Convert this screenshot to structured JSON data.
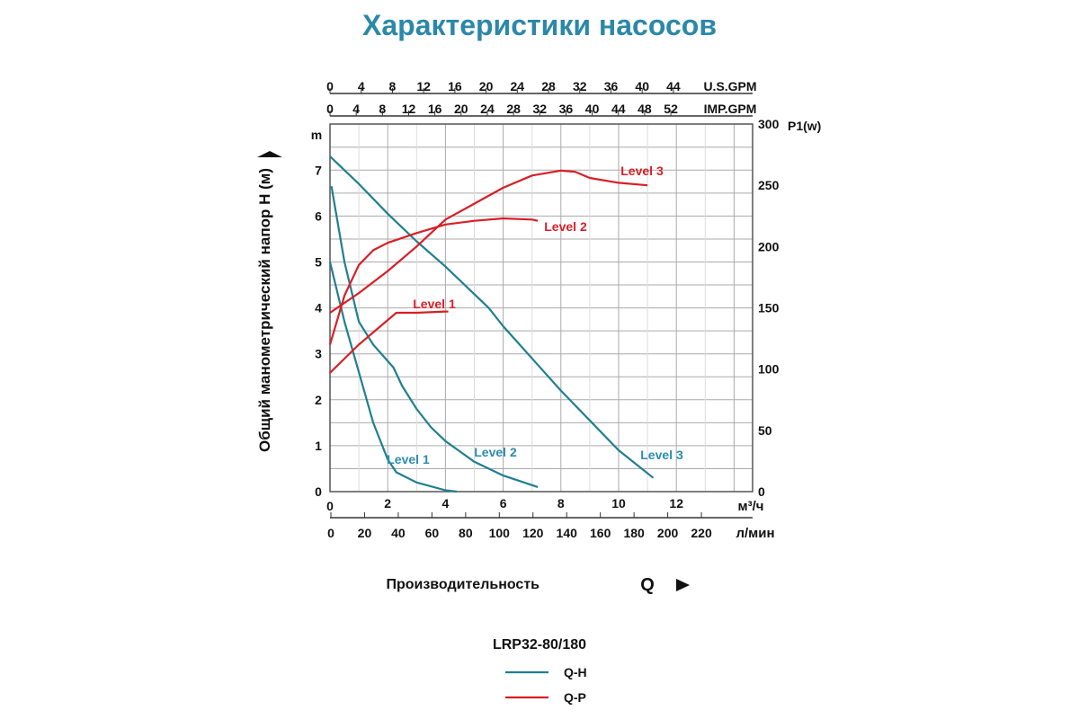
{
  "title": "Характеристики насосов",
  "chart_data": {
    "type": "line",
    "model": "LRP32-80/180",
    "xlabel": "Производительность",
    "xlabel_symbol": "Q",
    "ylabel": "Общий манометрический напор H (м)",
    "ylabel_unit_top": "m",
    "y2label": "P1(w)",
    "x_unit": "м³/ч",
    "x_alt_unit": "л/мин",
    "top_axis_1_unit": "U.S.GPM",
    "top_axis_2_unit": "IMP.GPM",
    "xlim": [
      0,
      14.6
    ],
    "ylim": [
      0,
      8
    ],
    "y2lim": [
      0,
      300
    ],
    "grid": true,
    "x_ticks": [
      0,
      2,
      4,
      6,
      8,
      10,
      12
    ],
    "x_alt_ticks": [
      0,
      20,
      40,
      60,
      80,
      100,
      120,
      140,
      160,
      180,
      200,
      220
    ],
    "usgpm_ticks": [
      0,
      4,
      8,
      12,
      16,
      20,
      24,
      28,
      32,
      36,
      40,
      44
    ],
    "impgpm_ticks": [
      0,
      4,
      8,
      12,
      16,
      20,
      24,
      28,
      32,
      36,
      40,
      44,
      48,
      52
    ],
    "y_ticks": [
      0,
      1,
      2,
      3,
      4,
      5,
      6,
      7
    ],
    "y2_ticks": [
      0,
      50,
      100,
      150,
      200,
      250,
      300
    ],
    "colors": {
      "qh": "#1f7f8f",
      "qp": "#d71f26",
      "title": "#2b88a8",
      "qh_label": "#2a8cb0"
    },
    "legend": [
      {
        "name": "Q-H",
        "color": "#1f7f8f"
      },
      {
        "name": "Q-P",
        "color": "#d71f26"
      }
    ],
    "qh_series": [
      {
        "name": "Level 1",
        "points": [
          [
            0,
            5.0
          ],
          [
            0.5,
            3.7
          ],
          [
            1,
            2.6
          ],
          [
            1.5,
            1.5
          ],
          [
            2,
            0.7
          ],
          [
            2.3,
            0.42
          ],
          [
            3,
            0.2
          ],
          [
            4,
            0.03
          ],
          [
            4.4,
            0
          ]
        ]
      },
      {
        "name": "Level 2",
        "points": [
          [
            0.05,
            6.65
          ],
          [
            0.5,
            5.0
          ],
          [
            1,
            3.7
          ],
          [
            1.5,
            3.2
          ],
          [
            2.2,
            2.7
          ],
          [
            2.5,
            2.3
          ],
          [
            3,
            1.8
          ],
          [
            3.5,
            1.4
          ],
          [
            4,
            1.1
          ],
          [
            5,
            0.65
          ],
          [
            6,
            0.35
          ],
          [
            7.2,
            0.1
          ]
        ]
      },
      {
        "name": "Level 3",
        "points": [
          [
            0,
            7.3
          ],
          [
            1,
            6.7
          ],
          [
            2,
            6.05
          ],
          [
            3,
            5.45
          ],
          [
            4,
            4.9
          ],
          [
            5,
            4.3
          ],
          [
            5.5,
            4.0
          ],
          [
            6,
            3.6
          ],
          [
            7,
            2.9
          ],
          [
            8,
            2.2
          ],
          [
            9,
            1.55
          ],
          [
            10,
            0.9
          ],
          [
            11.2,
            0.3
          ]
        ]
      }
    ],
    "qp_series": [
      {
        "name": "Level 1",
        "points": [
          [
            0,
            97
          ],
          [
            1,
            120
          ],
          [
            2,
            140
          ],
          [
            2.3,
            146
          ],
          [
            3,
            146
          ],
          [
            4,
            147
          ],
          [
            4.1,
            147
          ]
        ]
      },
      {
        "name": "Level 2",
        "points": [
          [
            0,
            120
          ],
          [
            0.5,
            160
          ],
          [
            1,
            185
          ],
          [
            1.5,
            197
          ],
          [
            2,
            203
          ],
          [
            3,
            211
          ],
          [
            4,
            218
          ],
          [
            5,
            221
          ],
          [
            6,
            223
          ],
          [
            7,
            222
          ],
          [
            7.2,
            221
          ]
        ]
      },
      {
        "name": "Level 3",
        "points": [
          [
            0,
            146
          ],
          [
            1,
            162
          ],
          [
            2,
            180
          ],
          [
            3,
            200
          ],
          [
            4,
            222
          ],
          [
            5,
            235
          ],
          [
            6,
            248
          ],
          [
            7,
            258
          ],
          [
            8,
            262
          ],
          [
            8.5,
            261
          ],
          [
            9,
            256
          ],
          [
            10,
            252
          ],
          [
            11,
            250
          ]
        ]
      }
    ]
  }
}
